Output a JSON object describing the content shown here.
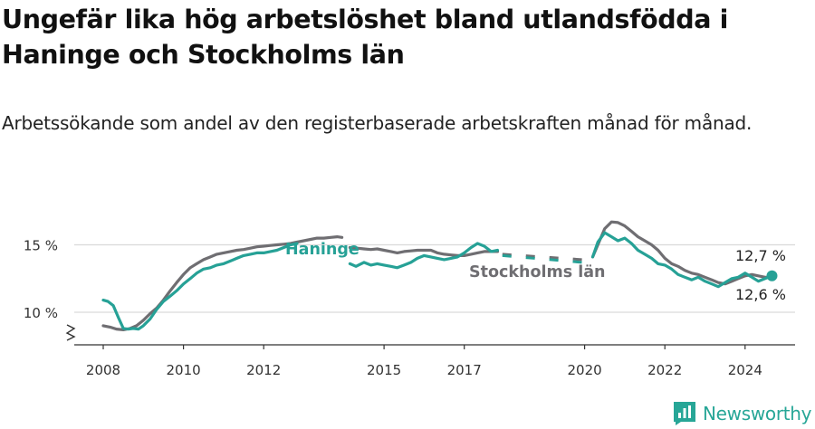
{
  "title": "Ungefär lika hög arbetslöshet bland utlandsfödda i Haninge och Stockholms län",
  "subtitle": "Arbetssökande som andel av den registerbaserade arbetskraften månad för månad.",
  "brand": "Newsworthy",
  "chart_data": {
    "type": "line",
    "unit": "%",
    "x_range": [
      2007.5,
      2025.25
    ],
    "ylim": [
      8.2,
      16.9
    ],
    "y_ticks": [
      {
        "value": 10,
        "label": "10 %"
      },
      {
        "value": 15,
        "label": "15 %"
      }
    ],
    "x_ticks": [
      {
        "value": 2008,
        "label": "2008"
      },
      {
        "value": 2010,
        "label": "2010"
      },
      {
        "value": 2012,
        "label": "2012"
      },
      {
        "value": 2015,
        "label": "2015"
      },
      {
        "value": 2017,
        "label": "2017"
      },
      {
        "value": 2020,
        "label": "2020"
      },
      {
        "value": 2022,
        "label": "2022"
      },
      {
        "value": 2024,
        "label": "2024"
      }
    ],
    "grid": true,
    "series": [
      {
        "name": "Stockholms län",
        "color": "#6f6e72",
        "label": "Stockholms län",
        "end_label": "12,6 %",
        "segments": [
          [
            [
              2008.0,
              9.0
            ],
            [
              2008.17,
              8.9
            ],
            [
              2008.33,
              8.75
            ],
            [
              2008.5,
              8.7
            ],
            [
              2008.67,
              8.8
            ],
            [
              2008.83,
              9.0
            ],
            [
              2009.0,
              9.4
            ],
            [
              2009.17,
              9.9
            ],
            [
              2009.33,
              10.3
            ],
            [
              2009.5,
              10.9
            ],
            [
              2009.67,
              11.6
            ],
            [
              2009.83,
              12.2
            ],
            [
              2010.0,
              12.8
            ],
            [
              2010.17,
              13.3
            ],
            [
              2010.33,
              13.6
            ],
            [
              2010.5,
              13.9
            ],
            [
              2010.67,
              14.1
            ],
            [
              2010.83,
              14.3
            ],
            [
              2011.0,
              14.4
            ],
            [
              2011.17,
              14.5
            ],
            [
              2011.33,
              14.6
            ],
            [
              2011.5,
              14.65
            ],
            [
              2011.67,
              14.75
            ],
            [
              2011.83,
              14.85
            ],
            [
              2012.0,
              14.9
            ],
            [
              2012.17,
              14.95
            ],
            [
              2012.33,
              15.0
            ],
            [
              2012.5,
              15.05
            ],
            [
              2012.67,
              15.1
            ],
            [
              2012.83,
              15.2
            ],
            [
              2013.0,
              15.3
            ],
            [
              2013.17,
              15.4
            ],
            [
              2013.33,
              15.5
            ],
            [
              2013.5,
              15.5
            ],
            [
              2013.67,
              15.55
            ],
            [
              2013.83,
              15.6
            ],
            [
              2013.95,
              15.55
            ]
          ],
          [
            [
              2014.15,
              14.8
            ],
            [
              2014.33,
              14.75
            ],
            [
              2014.5,
              14.7
            ],
            [
              2014.67,
              14.65
            ],
            [
              2014.83,
              14.7
            ],
            [
              2015.0,
              14.6
            ],
            [
              2015.17,
              14.5
            ],
            [
              2015.33,
              14.4
            ],
            [
              2015.5,
              14.5
            ],
            [
              2015.67,
              14.55
            ],
            [
              2015.83,
              14.6
            ],
            [
              2016.0,
              14.6
            ],
            [
              2016.17,
              14.6
            ],
            [
              2016.33,
              14.4
            ],
            [
              2016.5,
              14.3
            ],
            [
              2016.67,
              14.25
            ],
            [
              2016.83,
              14.2
            ],
            [
              2017.0,
              14.2
            ],
            [
              2017.17,
              14.3
            ],
            [
              2017.33,
              14.4
            ],
            [
              2017.5,
              14.5
            ],
            [
              2017.67,
              14.5
            ],
            [
              2017.83,
              14.5
            ]
          ]
        ],
        "dashed_segments": [
          [
            [
              2017.95,
              14.3
            ],
            [
              2019.95,
              13.9
            ]
          ]
        ]
      },
      {
        "name": "Haninge",
        "color": "#26a196",
        "label": "Haninge",
        "end_label": "12,7 %",
        "segments": [
          [
            [
              2008.0,
              10.9
            ],
            [
              2008.12,
              10.8
            ],
            [
              2008.25,
              10.5
            ],
            [
              2008.38,
              9.6
            ],
            [
              2008.5,
              8.8
            ],
            [
              2008.62,
              8.75
            ],
            [
              2008.75,
              8.8
            ],
            [
              2008.88,
              8.75
            ],
            [
              2009.0,
              9.0
            ],
            [
              2009.17,
              9.5
            ],
            [
              2009.33,
              10.2
            ],
            [
              2009.5,
              10.8
            ],
            [
              2009.67,
              11.2
            ],
            [
              2009.83,
              11.6
            ],
            [
              2010.0,
              12.1
            ],
            [
              2010.17,
              12.5
            ],
            [
              2010.33,
              12.9
            ],
            [
              2010.5,
              13.2
            ],
            [
              2010.67,
              13.3
            ],
            [
              2010.83,
              13.5
            ],
            [
              2011.0,
              13.6
            ],
            [
              2011.17,
              13.8
            ],
            [
              2011.33,
              14.0
            ],
            [
              2011.5,
              14.2
            ],
            [
              2011.67,
              14.3
            ],
            [
              2011.83,
              14.4
            ],
            [
              2012.0,
              14.4
            ],
            [
              2012.17,
              14.5
            ],
            [
              2012.33,
              14.6
            ],
            [
              2012.5,
              14.8
            ],
            [
              2012.67,
              15.0
            ],
            [
              2012.83,
              15.1
            ]
          ],
          [
            [
              2014.15,
              13.6
            ],
            [
              2014.3,
              13.4
            ],
            [
              2014.5,
              13.7
            ],
            [
              2014.67,
              13.5
            ],
            [
              2014.83,
              13.6
            ],
            [
              2015.0,
              13.5
            ],
            [
              2015.17,
              13.4
            ],
            [
              2015.33,
              13.3
            ],
            [
              2015.5,
              13.5
            ],
            [
              2015.67,
              13.7
            ],
            [
              2015.83,
              14.0
            ],
            [
              2016.0,
              14.2
            ],
            [
              2016.17,
              14.1
            ],
            [
              2016.33,
              14.0
            ],
            [
              2016.5,
              13.9
            ],
            [
              2016.67,
              14.0
            ],
            [
              2016.83,
              14.1
            ],
            [
              2017.0,
              14.4
            ],
            [
              2017.17,
              14.8
            ],
            [
              2017.33,
              15.1
            ],
            [
              2017.5,
              14.9
            ],
            [
              2017.67,
              14.5
            ],
            [
              2017.83,
              14.6
            ]
          ]
        ],
        "dashed_segments": [
          [
            [
              2017.95,
              14.2
            ],
            [
              2019.95,
              13.7
            ]
          ]
        ]
      }
    ],
    "post_2020": {
      "stockholm": [
        [
          2020.2,
          14.1
        ],
        [
          2020.33,
          15.0
        ],
        [
          2020.5,
          16.2
        ],
        [
          2020.67,
          16.7
        ],
        [
          2020.83,
          16.65
        ],
        [
          2021.0,
          16.4
        ],
        [
          2021.17,
          16.0
        ],
        [
          2021.33,
          15.6
        ],
        [
          2021.5,
          15.3
        ],
        [
          2021.67,
          15.0
        ],
        [
          2021.83,
          14.6
        ],
        [
          2022.0,
          14.0
        ],
        [
          2022.17,
          13.6
        ],
        [
          2022.33,
          13.4
        ],
        [
          2022.5,
          13.1
        ],
        [
          2022.67,
          12.9
        ],
        [
          2022.83,
          12.8
        ],
        [
          2023.0,
          12.6
        ],
        [
          2023.17,
          12.4
        ],
        [
          2023.33,
          12.2
        ],
        [
          2023.5,
          12.1
        ],
        [
          2023.67,
          12.3
        ],
        [
          2023.83,
          12.5
        ],
        [
          2024.0,
          12.7
        ],
        [
          2024.17,
          12.8
        ],
        [
          2024.33,
          12.7
        ],
        [
          2024.5,
          12.6
        ],
        [
          2024.67,
          12.6
        ]
      ],
      "haninge": [
        [
          2020.2,
          14.1
        ],
        [
          2020.33,
          15.2
        ],
        [
          2020.5,
          15.9
        ],
        [
          2020.67,
          15.6
        ],
        [
          2020.83,
          15.3
        ],
        [
          2021.0,
          15.5
        ],
        [
          2021.17,
          15.1
        ],
        [
          2021.33,
          14.6
        ],
        [
          2021.5,
          14.3
        ],
        [
          2021.67,
          14.0
        ],
        [
          2021.83,
          13.6
        ],
        [
          2022.0,
          13.5
        ],
        [
          2022.17,
          13.2
        ],
        [
          2022.33,
          12.8
        ],
        [
          2022.5,
          12.6
        ],
        [
          2022.67,
          12.4
        ],
        [
          2022.83,
          12.6
        ],
        [
          2023.0,
          12.3
        ],
        [
          2023.17,
          12.1
        ],
        [
          2023.33,
          11.9
        ],
        [
          2023.5,
          12.2
        ],
        [
          2023.67,
          12.5
        ],
        [
          2023.83,
          12.6
        ],
        [
          2024.0,
          12.9
        ],
        [
          2024.17,
          12.6
        ],
        [
          2024.33,
          12.3
        ],
        [
          2024.5,
          12.5
        ],
        [
          2024.67,
          12.7
        ]
      ]
    }
  }
}
